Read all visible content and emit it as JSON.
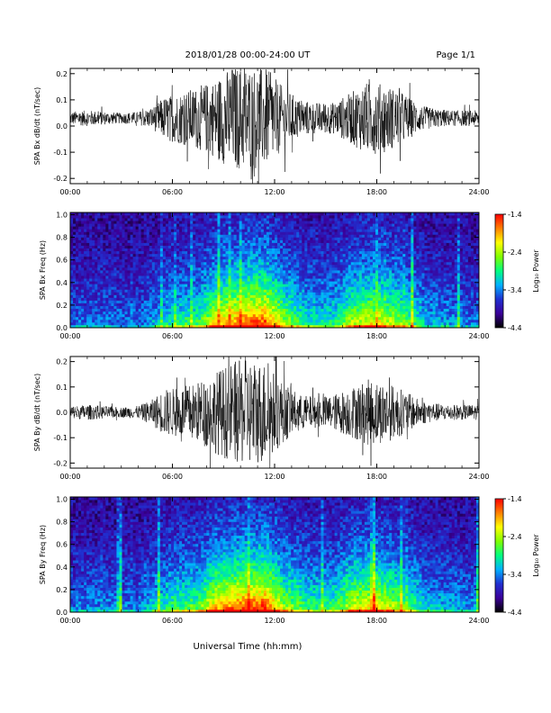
{
  "header": {
    "date_range": "2018/01/28  00:00-24:00 UT",
    "page": "Page 1/1"
  },
  "xlabel": "Universal Time (hh:mm)",
  "colorbar": {
    "ticks": [
      "-1.4",
      "-2.4",
      "-3.4",
      "-4.4"
    ],
    "label": "Log₁₀ Power",
    "range": [
      -4.4,
      -1.4
    ],
    "colormap": [
      "#000000",
      "#3b0099",
      "#2030d0",
      "#00b0ff",
      "#00ff80",
      "#80ff00",
      "#ffff00",
      "#ff8000",
      "#ff0000"
    ]
  },
  "chart_data": [
    {
      "type": "line",
      "name": "bx-waveform",
      "ylabel": "SPA Bx dB/dt (nT/sec)",
      "x_ticks": [
        "00:00",
        "06:00",
        "12:00",
        "18:00",
        "24:00"
      ],
      "y_ticks": [
        "0.2",
        "0.1",
        "0.0",
        "-0.1",
        "-0.2"
      ],
      "xlim": [
        0,
        24
      ],
      "ylim": [
        -0.22,
        0.22
      ],
      "offset": 0.03,
      "envelope": [
        {
          "t": 0,
          "a": 0.025
        },
        {
          "t": 1,
          "a": 0.03
        },
        {
          "t": 2,
          "a": 0.025
        },
        {
          "t": 3,
          "a": 0.02
        },
        {
          "t": 4,
          "a": 0.025
        },
        {
          "t": 4.8,
          "a": 0.04
        },
        {
          "t": 5.5,
          "a": 0.08
        },
        {
          "t": 6.5,
          "a": 0.1
        },
        {
          "t": 7.5,
          "a": 0.12
        },
        {
          "t": 8.5,
          "a": 0.15
        },
        {
          "t": 9.5,
          "a": 0.2
        },
        {
          "t": 10.5,
          "a": 0.2
        },
        {
          "t": 11.5,
          "a": 0.19
        },
        {
          "t": 12.5,
          "a": 0.12
        },
        {
          "t": 13.5,
          "a": 0.07
        },
        {
          "t": 14.5,
          "a": 0.06
        },
        {
          "t": 15.5,
          "a": 0.06
        },
        {
          "t": 16.5,
          "a": 0.1
        },
        {
          "t": 17.5,
          "a": 0.14
        },
        {
          "t": 18.5,
          "a": 0.13
        },
        {
          "t": 19.5,
          "a": 0.1
        },
        {
          "t": 20.5,
          "a": 0.05
        },
        {
          "t": 21.5,
          "a": 0.035
        },
        {
          "t": 22.5,
          "a": 0.03
        },
        {
          "t": 24,
          "a": 0.03
        }
      ]
    },
    {
      "type": "heatmap",
      "name": "bx-spectrogram",
      "ylabel": "SPA Bx Freq (Hz)",
      "x_ticks": [
        "00:00",
        "06:00",
        "12:00",
        "18:00",
        "24:00"
      ],
      "y_ticks": [
        "1.0",
        "0.8",
        "0.6",
        "0.4",
        "0.2",
        "0.0"
      ],
      "xlim": [
        0,
        24
      ],
      "ylim": [
        0,
        1.02
      ],
      "activity": [
        {
          "t": 0,
          "v": 0.2
        },
        {
          "t": 2,
          "v": 0.22
        },
        {
          "t": 4,
          "v": 0.2
        },
        {
          "t": 5,
          "v": 0.3
        },
        {
          "t": 6,
          "v": 0.4
        },
        {
          "t": 7.5,
          "v": 0.45
        },
        {
          "t": 8.5,
          "v": 0.7
        },
        {
          "t": 10,
          "v": 0.85
        },
        {
          "t": 11.5,
          "v": 0.9
        },
        {
          "t": 12.5,
          "v": 0.6
        },
        {
          "t": 14,
          "v": 0.4
        },
        {
          "t": 15.5,
          "v": 0.4
        },
        {
          "t": 16.5,
          "v": 0.6
        },
        {
          "t": 18,
          "v": 0.7
        },
        {
          "t": 19.5,
          "v": 0.55
        },
        {
          "t": 21,
          "v": 0.3
        },
        {
          "t": 24,
          "v": 0.22
        }
      ]
    },
    {
      "type": "line",
      "name": "by-waveform",
      "ylabel": "SPA By dB/dt (nT/sec)",
      "x_ticks": [
        "00:00",
        "06:00",
        "12:00",
        "18:00",
        "24:00"
      ],
      "y_ticks": [
        "0.2",
        "0.1",
        "0.0",
        "-0.1",
        "-0.2"
      ],
      "xlim": [
        0,
        24
      ],
      "ylim": [
        -0.22,
        0.22
      ],
      "offset": 0.0,
      "envelope": [
        {
          "t": 0,
          "a": 0.025
        },
        {
          "t": 1,
          "a": 0.03
        },
        {
          "t": 2,
          "a": 0.025
        },
        {
          "t": 3,
          "a": 0.02
        },
        {
          "t": 4,
          "a": 0.025
        },
        {
          "t": 4.8,
          "a": 0.05
        },
        {
          "t": 5.5,
          "a": 0.09
        },
        {
          "t": 6.5,
          "a": 0.1
        },
        {
          "t": 7.5,
          "a": 0.12
        },
        {
          "t": 8.5,
          "a": 0.16
        },
        {
          "t": 9.5,
          "a": 0.2
        },
        {
          "t": 10.5,
          "a": 0.21
        },
        {
          "t": 11.5,
          "a": 0.2
        },
        {
          "t": 12.5,
          "a": 0.12
        },
        {
          "t": 13.5,
          "a": 0.07
        },
        {
          "t": 14.5,
          "a": 0.06
        },
        {
          "t": 15.5,
          "a": 0.07
        },
        {
          "t": 16.5,
          "a": 0.1
        },
        {
          "t": 17.5,
          "a": 0.13
        },
        {
          "t": 18.5,
          "a": 0.12
        },
        {
          "t": 19.5,
          "a": 0.09
        },
        {
          "t": 20.5,
          "a": 0.05
        },
        {
          "t": 21.5,
          "a": 0.035
        },
        {
          "t": 22.5,
          "a": 0.03
        },
        {
          "t": 24,
          "a": 0.03
        }
      ]
    },
    {
      "type": "heatmap",
      "name": "by-spectrogram",
      "ylabel": "SPA By Freq (Hz)",
      "x_ticks": [
        "00:00",
        "06:00",
        "12:00",
        "18:00",
        "24:00"
      ],
      "y_ticks": [
        "1.0",
        "0.8",
        "0.6",
        "0.4",
        "0.2",
        "0.0"
      ],
      "xlim": [
        0,
        24
      ],
      "ylim": [
        0,
        1.02
      ],
      "activity": [
        {
          "t": 0,
          "v": 0.22
        },
        {
          "t": 2,
          "v": 0.25
        },
        {
          "t": 4,
          "v": 0.22
        },
        {
          "t": 5,
          "v": 0.35
        },
        {
          "t": 6,
          "v": 0.45
        },
        {
          "t": 7.5,
          "v": 0.5
        },
        {
          "t": 8.5,
          "v": 0.75
        },
        {
          "t": 10,
          "v": 0.88
        },
        {
          "t": 11.5,
          "v": 0.92
        },
        {
          "t": 12.5,
          "v": 0.6
        },
        {
          "t": 14,
          "v": 0.45
        },
        {
          "t": 15.5,
          "v": 0.45
        },
        {
          "t": 16.5,
          "v": 0.65
        },
        {
          "t": 18,
          "v": 0.72
        },
        {
          "t": 19.5,
          "v": 0.55
        },
        {
          "t": 21,
          "v": 0.32
        },
        {
          "t": 24,
          "v": 0.25
        }
      ]
    }
  ]
}
